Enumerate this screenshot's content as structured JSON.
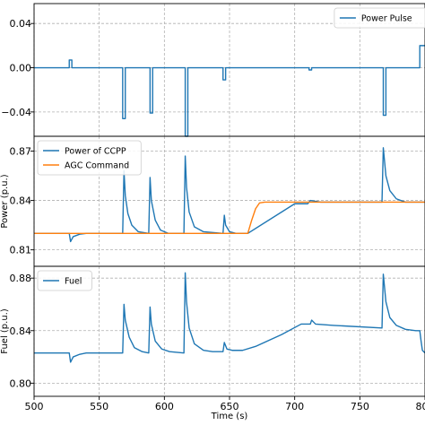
{
  "chart_data": [
    {
      "type": "line",
      "xlim": [
        500,
        800
      ],
      "ylim": [
        -0.062,
        0.058
      ],
      "yticks": [
        0.04,
        0.0,
        -0.04
      ],
      "ytick_labels": [
        "0.04",
        "0.00",
        "−0.04"
      ],
      "grid": true,
      "legend_position": "upper right",
      "ylabel": "",
      "series": [
        {
          "name": "Power Pulse",
          "color": "#1f77b4",
          "points": [
            [
              500,
              0.0
            ],
            [
              527,
              0.0
            ],
            [
              527,
              0.007
            ],
            [
              529,
              0.007
            ],
            [
              529,
              0.0
            ],
            [
              568,
              0.0
            ],
            [
              568,
              -0.046
            ],
            [
              570,
              -0.046
            ],
            [
              570,
              0.0
            ],
            [
              589,
              0.0
            ],
            [
              589,
              -0.041
            ],
            [
              591,
              -0.041
            ],
            [
              591,
              0.0
            ],
            [
              616,
              0.0
            ],
            [
              616,
              -0.062
            ],
            [
              618,
              -0.062
            ],
            [
              618,
              0.0
            ],
            [
              645,
              0.0
            ],
            [
              645,
              -0.011
            ],
            [
              647,
              -0.011
            ],
            [
              647,
              0.0
            ],
            [
              711,
              0.0
            ],
            [
              711,
              -0.002
            ],
            [
              713,
              -0.002
            ],
            [
              713,
              0.0
            ],
            [
              768,
              0.0
            ],
            [
              768,
              -0.043
            ],
            [
              770,
              -0.043
            ],
            [
              770,
              0.0
            ],
            [
              796,
              0.0
            ],
            [
              796,
              0.02
            ],
            [
              800,
              0.02
            ]
          ]
        }
      ]
    },
    {
      "type": "line",
      "xlim": [
        500,
        800
      ],
      "ylim": [
        0.8,
        0.879
      ],
      "yticks": [
        0.87,
        0.84,
        0.81
      ],
      "ytick_labels": [
        "0.87",
        "0.84",
        "0.81"
      ],
      "grid": true,
      "legend_position": "upper left",
      "ylabel": "Power (p.u.)",
      "series": [
        {
          "name": "Power of CCPP",
          "color": "#1f77b4",
          "points": [
            [
              500,
              0.82
            ],
            [
              527,
              0.82
            ],
            [
              528,
              0.815
            ],
            [
              530,
              0.818
            ],
            [
              535,
              0.8195
            ],
            [
              540,
              0.82
            ],
            [
              568,
              0.82
            ],
            [
              569,
              0.858
            ],
            [
              570,
              0.843
            ],
            [
              572,
              0.832
            ],
            [
              575,
              0.825
            ],
            [
              580,
              0.821
            ],
            [
              588,
              0.82
            ],
            [
              589,
              0.854
            ],
            [
              590,
              0.84
            ],
            [
              593,
              0.828
            ],
            [
              597,
              0.822
            ],
            [
              603,
              0.82
            ],
            [
              615,
              0.82
            ],
            [
              616,
              0.867
            ],
            [
              617,
              0.848
            ],
            [
              619,
              0.833
            ],
            [
              623,
              0.824
            ],
            [
              630,
              0.821
            ],
            [
              645,
              0.82
            ],
            [
              646,
              0.831
            ],
            [
              647,
              0.825
            ],
            [
              650,
              0.821
            ],
            [
              655,
              0.82
            ],
            [
              664,
              0.82
            ],
            [
              700,
              0.838
            ],
            [
              710,
              0.838
            ],
            [
              712,
              0.84
            ],
            [
              720,
              0.839
            ],
            [
              740,
              0.839
            ],
            [
              767,
              0.839
            ],
            [
              768,
              0.872
            ],
            [
              770,
              0.855
            ],
            [
              773,
              0.846
            ],
            [
              778,
              0.841
            ],
            [
              785,
              0.839
            ],
            [
              796,
              0.839
            ],
            [
              800,
              0.839
            ]
          ]
        },
        {
          "name": "AGC Command",
          "color": "#ff7f0e",
          "points": [
            [
              500,
              0.82
            ],
            [
              664,
              0.82
            ],
            [
              667,
              0.828
            ],
            [
              670,
              0.835
            ],
            [
              673,
              0.8385
            ],
            [
              677,
              0.839
            ],
            [
              800,
              0.839
            ]
          ]
        }
      ]
    },
    {
      "type": "line",
      "xlim": [
        500,
        800
      ],
      "ylim": [
        0.79,
        0.889
      ],
      "yticks": [
        0.88,
        0.84,
        0.8
      ],
      "ytick_labels": [
        "0.88",
        "0.84",
        "0.80"
      ],
      "grid": true,
      "legend_position": "upper left",
      "ylabel": "Fuel (p.u.)",
      "series": [
        {
          "name": "Fuel",
          "color": "#1f77b4",
          "points": [
            [
              500,
              0.823
            ],
            [
              527,
              0.823
            ],
            [
              528,
              0.816
            ],
            [
              530,
              0.82
            ],
            [
              535,
              0.822
            ],
            [
              540,
              0.823
            ],
            [
              568,
              0.823
            ],
            [
              569,
              0.86
            ],
            [
              570,
              0.848
            ],
            [
              573,
              0.835
            ],
            [
              577,
              0.827
            ],
            [
              583,
              0.824
            ],
            [
              588,
              0.823
            ],
            [
              589,
              0.858
            ],
            [
              590,
              0.845
            ],
            [
              593,
              0.832
            ],
            [
              598,
              0.826
            ],
            [
              604,
              0.824
            ],
            [
              615,
              0.823
            ],
            [
              616,
              0.884
            ],
            [
              617,
              0.862
            ],
            [
              619,
              0.842
            ],
            [
              623,
              0.83
            ],
            [
              630,
              0.825
            ],
            [
              637,
              0.824
            ],
            [
              645,
              0.824
            ],
            [
              646,
              0.831
            ],
            [
              648,
              0.826
            ],
            [
              652,
              0.825
            ],
            [
              660,
              0.825
            ],
            [
              670,
              0.828
            ],
            [
              690,
              0.837
            ],
            [
              705,
              0.845
            ],
            [
              712,
              0.845
            ],
            [
              713,
              0.848
            ],
            [
              716,
              0.845
            ],
            [
              730,
              0.844
            ],
            [
              767,
              0.842
            ],
            [
              768,
              0.883
            ],
            [
              770,
              0.862
            ],
            [
              773,
              0.85
            ],
            [
              778,
              0.844
            ],
            [
              785,
              0.841
            ],
            [
              793,
              0.84
            ],
            [
              796,
              0.84
            ],
            [
              797,
              0.832
            ],
            [
              798,
              0.825
            ],
            [
              800,
              0.823
            ]
          ]
        }
      ]
    }
  ],
  "x_axis": {
    "label": "Time (s)",
    "ticks": [
      500,
      550,
      600,
      650,
      700,
      750,
      800
    ],
    "tick_labels": [
      "500",
      "550",
      "600",
      "650",
      "700",
      "750",
      "800"
    ]
  },
  "colors": {
    "blue": "#1f77b4",
    "orange": "#ff7f0e"
  }
}
